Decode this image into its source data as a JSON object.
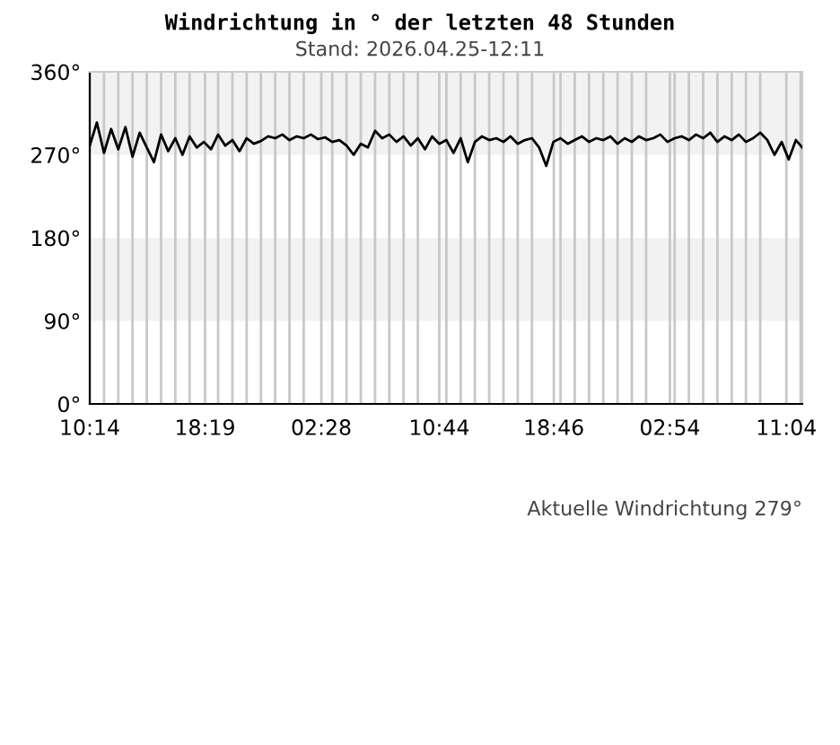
{
  "chart_data": {
    "type": "line",
    "title": "Windrichtung in ° der letzten 48 Stunden",
    "subtitle": "Stand: 2026.04.25-12:11",
    "annotations": [
      "Aktuelle Windrichtung 279°"
    ],
    "x": [
      "2026-04-23T10:14",
      "2026-04-23T10:44",
      "2026-04-23T11:14",
      "2026-04-23T11:44",
      "2026-04-23T12:14",
      "2026-04-23T12:44",
      "2026-04-23T13:14",
      "2026-04-23T13:44",
      "2026-04-23T14:14",
      "2026-04-23T14:44",
      "2026-04-23T15:14",
      "2026-04-23T15:44",
      "2026-04-23T16:14",
      "2026-04-23T16:44",
      "2026-04-23T17:14",
      "2026-04-23T17:44",
      "2026-04-23T18:14",
      "2026-04-23T18:44",
      "2026-04-23T19:14",
      "2026-04-23T19:44",
      "2026-04-23T20:14",
      "2026-04-23T20:44",
      "2026-04-23T21:14",
      "2026-04-23T21:44",
      "2026-04-23T22:14",
      "2026-04-23T22:44",
      "2026-04-23T23:14",
      "2026-04-23T23:44",
      "2026-04-24T00:14",
      "2026-04-24T00:44",
      "2026-04-24T01:14",
      "2026-04-24T01:44",
      "2026-04-24T02:14",
      "2026-04-24T02:44",
      "2026-04-24T03:14",
      "2026-04-24T03:44",
      "2026-04-24T04:14",
      "2026-04-24T04:44",
      "2026-04-24T05:14",
      "2026-04-24T05:44",
      "2026-04-24T06:14",
      "2026-04-24T06:44",
      "2026-04-24T07:14",
      "2026-04-24T07:44",
      "2026-04-24T08:14",
      "2026-04-24T08:44",
      "2026-04-24T09:14",
      "2026-04-24T09:44",
      "2026-04-24T10:14",
      "2026-04-24T10:44",
      "2026-04-24T11:14",
      "2026-04-24T11:44",
      "2026-04-24T12:14",
      "2026-04-24T12:44",
      "2026-04-24T13:14",
      "2026-04-24T13:44",
      "2026-04-24T14:14",
      "2026-04-24T14:44",
      "2026-04-24T15:14",
      "2026-04-24T15:44",
      "2026-04-24T16:14",
      "2026-04-24T16:44",
      "2026-04-24T17:14",
      "2026-04-24T17:44",
      "2026-04-24T18:14",
      "2026-04-24T18:44",
      "2026-04-24T19:14",
      "2026-04-24T19:44",
      "2026-04-24T20:14",
      "2026-04-24T20:44",
      "2026-04-24T21:14",
      "2026-04-24T21:44",
      "2026-04-24T22:14",
      "2026-04-24T22:44",
      "2026-04-24T23:14",
      "2026-04-24T23:44",
      "2026-04-25T00:14",
      "2026-04-25T00:44",
      "2026-04-25T01:14",
      "2026-04-25T01:44",
      "2026-04-25T02:14",
      "2026-04-25T02:44",
      "2026-04-25T03:14",
      "2026-04-25T03:44",
      "2026-04-25T04:14",
      "2026-04-25T04:44",
      "2026-04-25T05:14",
      "2026-04-25T05:44",
      "2026-04-25T06:14",
      "2026-04-25T06:44",
      "2026-04-25T07:14",
      "2026-04-25T07:44",
      "2026-04-25T08:14",
      "2026-04-25T08:44",
      "2026-04-25T09:14",
      "2026-04-25T09:44",
      "2026-04-25T10:14",
      "2026-04-25T10:44",
      "2026-04-25T11:14",
      "2026-04-25T11:44",
      "2026-04-25T12:11"
    ],
    "series": [
      {
        "color": "#000000",
        "values": [
          280,
          305,
          272,
          298,
          276,
          300,
          268,
          294,
          278,
          262,
          292,
          274,
          288,
          270,
          290,
          278,
          284,
          276,
          292,
          280,
          286,
          274,
          288,
          282,
          285,
          290,
          288,
          292,
          286,
          290,
          288,
          292,
          287,
          289,
          284,
          286,
          280,
          270,
          282,
          278,
          296,
          288,
          292,
          284,
          290,
          280,
          288,
          276,
          290,
          282,
          286,
          272,
          288,
          262,
          284,
          290,
          286,
          288,
          284,
          290,
          282,
          286,
          288,
          278,
          258,
          284,
          288,
          282,
          286,
          290,
          284,
          288,
          286,
          290,
          282,
          288,
          284,
          290,
          286,
          288,
          292,
          284,
          288,
          290,
          286,
          292,
          288,
          294,
          284,
          290,
          286,
          292,
          284,
          288,
          294,
          286,
          270,
          284,
          265,
          286,
          278
        ]
      }
    ],
    "xlim": [
      "2026-04-23T10:14",
      "2026-04-25T12:11"
    ],
    "xticks": [
      {
        "value": "2026-04-23T10:14",
        "label": "10:14"
      },
      {
        "value": "2026-04-23T11:14",
        "label": null
      },
      {
        "value": "2026-04-23T12:14",
        "label": null
      },
      {
        "value": "2026-04-23T13:14",
        "label": null
      },
      {
        "value": "2026-04-23T14:14",
        "label": null
      },
      {
        "value": "2026-04-23T15:14",
        "label": null
      },
      {
        "value": "2026-04-23T16:14",
        "label": null
      },
      {
        "value": "2026-04-23T17:14",
        "label": null
      },
      {
        "value": "2026-04-23T18:19",
        "label": "18:19"
      },
      {
        "value": "2026-04-23T19:14",
        "label": null
      },
      {
        "value": "2026-04-23T20:14",
        "label": null
      },
      {
        "value": "2026-04-23T21:14",
        "label": null
      },
      {
        "value": "2026-04-23T22:14",
        "label": null
      },
      {
        "value": "2026-04-23T23:14",
        "label": null
      },
      {
        "value": "2026-04-24T00:14",
        "label": null
      },
      {
        "value": "2026-04-24T01:14",
        "label": null
      },
      {
        "value": "2026-04-24T02:28",
        "label": "02:28"
      },
      {
        "value": "2026-04-24T03:14",
        "label": null
      },
      {
        "value": "2026-04-24T04:14",
        "label": null
      },
      {
        "value": "2026-04-24T05:14",
        "label": null
      },
      {
        "value": "2026-04-24T06:14",
        "label": null
      },
      {
        "value": "2026-04-24T07:14",
        "label": null
      },
      {
        "value": "2026-04-24T08:14",
        "label": null
      },
      {
        "value": "2026-04-24T09:14",
        "label": null
      },
      {
        "value": "2026-04-24T10:44",
        "label": "10:44"
      },
      {
        "value": "2026-04-24T11:14",
        "label": null
      },
      {
        "value": "2026-04-24T12:14",
        "label": null
      },
      {
        "value": "2026-04-24T13:14",
        "label": null
      },
      {
        "value": "2026-04-24T14:14",
        "label": null
      },
      {
        "value": "2026-04-24T15:14",
        "label": null
      },
      {
        "value": "2026-04-24T16:14",
        "label": null
      },
      {
        "value": "2026-04-24T17:14",
        "label": null
      },
      {
        "value": "2026-04-24T18:46",
        "label": "18:46"
      },
      {
        "value": "2026-04-24T19:14",
        "label": null
      },
      {
        "value": "2026-04-24T20:14",
        "label": null
      },
      {
        "value": "2026-04-24T21:14",
        "label": null
      },
      {
        "value": "2026-04-24T22:14",
        "label": null
      },
      {
        "value": "2026-04-24T23:14",
        "label": null
      },
      {
        "value": "2026-04-25T00:14",
        "label": null
      },
      {
        "value": "2026-04-25T01:14",
        "label": null
      },
      {
        "value": "2026-04-25T02:54",
        "label": "02:54"
      },
      {
        "value": "2026-04-25T03:14",
        "label": null
      },
      {
        "value": "2026-04-25T04:14",
        "label": null
      },
      {
        "value": "2026-04-25T05:14",
        "label": null
      },
      {
        "value": "2026-04-25T06:14",
        "label": null
      },
      {
        "value": "2026-04-25T07:14",
        "label": null
      },
      {
        "value": "2026-04-25T08:14",
        "label": null
      },
      {
        "value": "2026-04-25T09:14",
        "label": null
      },
      {
        "value": "2026-04-25T11:04",
        "label": "11:04"
      },
      {
        "value": "2026-04-25T12:04",
        "label": null
      }
    ],
    "ylim": [
      0,
      360
    ],
    "yticks": [
      {
        "value": 0,
        "label": "0°"
      },
      {
        "value": 90,
        "label": "90°"
      },
      {
        "value": 180,
        "label": "180°"
      },
      {
        "value": 270,
        "label": "270°"
      },
      {
        "value": 360,
        "label": "360°"
      }
    ],
    "bands": [
      {
        "axis": "y",
        "from": 90,
        "to": 180,
        "color": "#f2f2f2"
      },
      {
        "axis": "y",
        "from": 270,
        "to": 360,
        "color": "#f2f2f2"
      }
    ],
    "grid": "x",
    "legend": false,
    "marker": "none",
    "line_style": "solid"
  }
}
